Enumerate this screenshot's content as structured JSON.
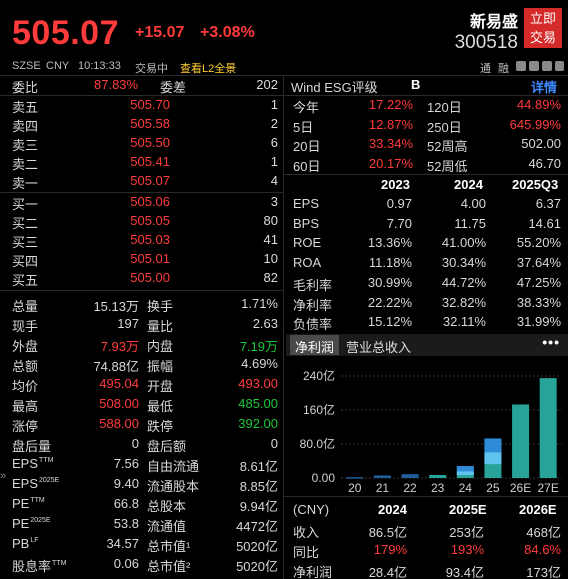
{
  "header": {
    "price": "505.07",
    "change": "+15.07",
    "change_pct": "+3.08%",
    "stock_name": "新易盛",
    "stock_code": "300518",
    "trade_button": "立即\n交易"
  },
  "infobar": {
    "exchange": "SZSE",
    "currency": "CNY",
    "time": "10:13:33",
    "status": "交易中",
    "l2_link": "查看L2全景",
    "icon1": "通",
    "icon2": "融"
  },
  "ratio": {
    "label_weibi": "委比",
    "weibi": "87.83%",
    "label_weicha": "委差",
    "weicha": "202"
  },
  "asks": [
    {
      "label": "卖五",
      "price": "505.70",
      "vol": "1"
    },
    {
      "label": "卖四",
      "price": "505.58",
      "vol": "2"
    },
    {
      "label": "卖三",
      "price": "505.50",
      "vol": "6"
    },
    {
      "label": "卖二",
      "price": "505.41",
      "vol": "1"
    },
    {
      "label": "卖一",
      "price": "505.07",
      "vol": "4"
    }
  ],
  "bids": [
    {
      "label": "买一",
      "price": "505.06",
      "vol": "3"
    },
    {
      "label": "买二",
      "price": "505.05",
      "vol": "80"
    },
    {
      "label": "买三",
      "price": "505.03",
      "vol": "41"
    },
    {
      "label": "买四",
      "price": "505.01",
      "vol": "10"
    },
    {
      "label": "买五",
      "price": "505.00",
      "vol": "82"
    }
  ],
  "stats": [
    {
      "k1": "总量",
      "v1": "15.13万",
      "k2": "换手",
      "v2": "1.71%"
    },
    {
      "k1": "现手",
      "v1": "197",
      "k2": "量比",
      "v2": "2.63"
    },
    {
      "k1": "外盘",
      "v1": "7.93万",
      "k2": "内盘",
      "v2": "7.19万"
    },
    {
      "k1": "总额",
      "v1": "74.88亿",
      "k2": "振幅",
      "v2": "4.69%"
    },
    {
      "k1": "均价",
      "v1": "495.04",
      "k2": "开盘",
      "v2": "493.00"
    },
    {
      "k1": "最高",
      "v1": "508.00",
      "k2": "最低",
      "v2": "485.00"
    },
    {
      "k1": "涨停",
      "v1": "588.00",
      "k2": "跌停",
      "v2": "392.00"
    },
    {
      "k1": "盘后量",
      "v1": "0",
      "k2": "盘后额",
      "v2": "0"
    },
    {
      "k1": "EPS",
      "k1sup": "TTM",
      "v1": "7.56",
      "k2": "自由流通",
      "v2": "8.61亿"
    },
    {
      "k1": "EPS",
      "k1sup": "2025E",
      "v1": "9.40",
      "k2": "流通股本",
      "v2": "8.85亿"
    },
    {
      "k1": "PE",
      "k1sup": "TTM",
      "v1": "66.8",
      "k2": "总股本",
      "v2": "9.94亿"
    },
    {
      "k1": "PE",
      "k1sup": "2025E",
      "v1": "53.8",
      "k2": "流通值",
      "v2": "4472亿"
    },
    {
      "k1": "PB",
      "k1sup": "LF",
      "v1": "34.57",
      "k2": "总市值¹",
      "v2": "5020亿"
    },
    {
      "k1": "股息率",
      "k1sup": "TTM",
      "v1": "0.06",
      "k2": "总市值²",
      "v2": "5020亿"
    }
  ],
  "esg": {
    "label": "Wind ESG评级",
    "grade": "B",
    "detail": "详情"
  },
  "returns": [
    {
      "k1": "今年",
      "v1": "17.22%",
      "k2": "120日",
      "v2": "44.89%"
    },
    {
      "k1": "5日",
      "v1": "12.87%",
      "k2": "250日",
      "v2": "645.99%"
    },
    {
      "k1": "20日",
      "v1": "33.34%",
      "k2": "52周高",
      "v2": "502.00"
    },
    {
      "k1": "60日",
      "v1": "20.17%",
      "k2": "52周低",
      "v2": "46.70"
    }
  ],
  "fin_headers": [
    "2023",
    "2024",
    "2025Q3"
  ],
  "fin_rows": [
    {
      "k": "EPS",
      "v": [
        "0.97",
        "4.00",
        "6.37"
      ]
    },
    {
      "k": "BPS",
      "v": [
        "7.70",
        "11.75",
        "14.61"
      ]
    },
    {
      "k": "ROE",
      "v": [
        "13.36%",
        "41.00%",
        "55.20%"
      ]
    },
    {
      "k": "ROA",
      "v": [
        "11.18%",
        "30.34%",
        "37.64%"
      ]
    },
    {
      "k": "毛利率",
      "v": [
        "30.99%",
        "44.72%",
        "47.25%"
      ]
    },
    {
      "k": "净利率",
      "v": [
        "22.22%",
        "32.82%",
        "38.33%"
      ]
    },
    {
      "k": "负债率",
      "v": [
        "15.12%",
        "32.11%",
        "31.99%"
      ]
    }
  ],
  "tabs": {
    "active": "净利润",
    "other": "营业总收入",
    "more": "•••"
  },
  "chart_data": {
    "type": "bar",
    "categories": [
      "20",
      "21",
      "22",
      "23",
      "24",
      "25",
      "26E",
      "27E"
    ],
    "values": [
      2,
      6,
      9,
      7,
      28,
      93,
      173,
      235
    ],
    "yticks": [
      "240亿",
      "160亿",
      "80.0亿",
      "0.00"
    ],
    "ylim": [
      0,
      240
    ],
    "colors": [
      "#1f5f9e",
      "#2f8ad8",
      "#5fc3f0",
      "#27a39a"
    ]
  },
  "bottom_table": {
    "headers": [
      "(CNY)",
      "2024",
      "2025E",
      "2026E"
    ],
    "rows": [
      {
        "k": "收入",
        "v": [
          "86.5亿",
          "253亿",
          "468亿"
        ]
      },
      {
        "k": "同比",
        "v": [
          "179%",
          "193%",
          "84.6%"
        ]
      },
      {
        "k": "净利润",
        "v": [
          "28.4亿",
          "93.4亿",
          "173亿"
        ]
      }
    ]
  }
}
